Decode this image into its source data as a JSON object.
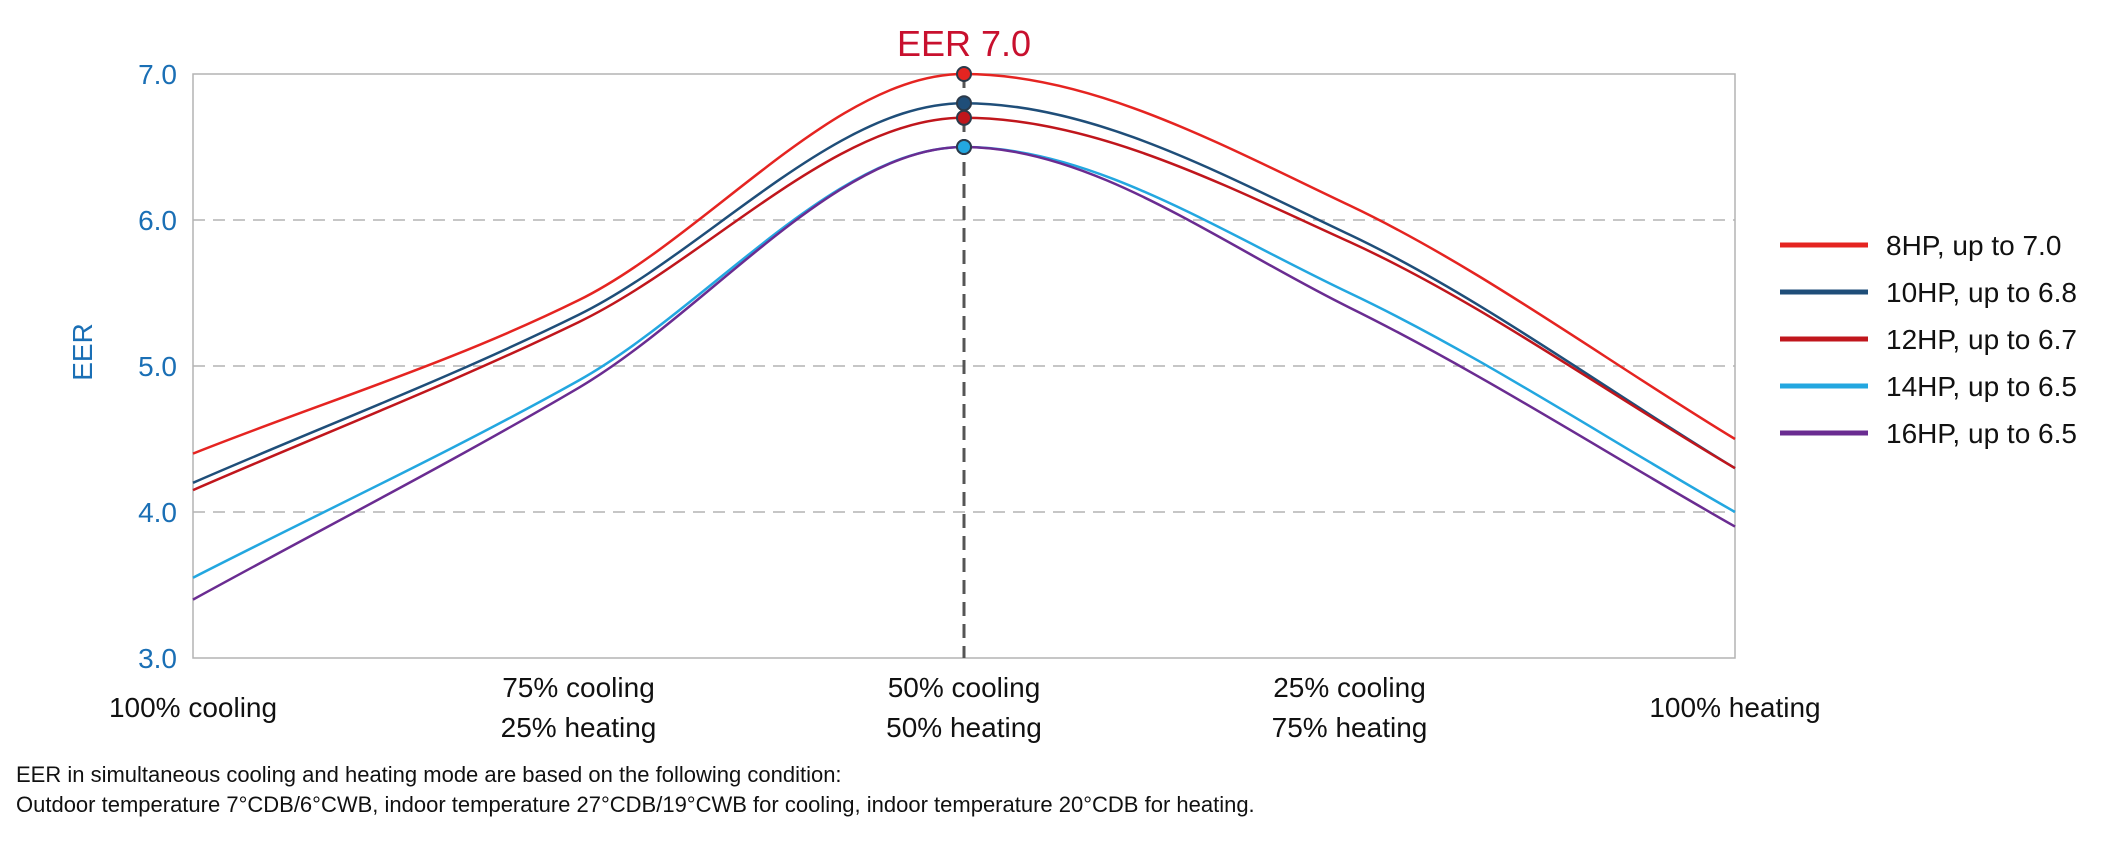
{
  "chart_data": {
    "type": "line",
    "title": "",
    "annotation": "EER 7.0",
    "xlabel": "",
    "ylabel": "EER",
    "ylim": [
      3.0,
      7.0
    ],
    "yticks": [
      "3.0",
      "4.0",
      "5.0",
      "6.0",
      "7.0"
    ],
    "grid": "horizontal dashed",
    "legend_position": "right",
    "categories": [
      [
        "100% cooling"
      ],
      [
        "75% cooling",
        "25% heating"
      ],
      [
        "50% cooling",
        "50% heating"
      ],
      [
        "25% cooling",
        "75% heating"
      ],
      [
        "100% heating"
      ]
    ],
    "x": [
      0,
      25,
      50,
      75,
      100
    ],
    "series": [
      {
        "name": "8HP, up to 7.0",
        "color": "#e52421",
        "values": [
          4.4,
          5.45,
          7.0,
          6.1,
          4.5
        ]
      },
      {
        "name": "10HP, up to 6.8",
        "color": "#1f4e79",
        "values": [
          4.2,
          5.35,
          6.8,
          5.9,
          4.3
        ]
      },
      {
        "name": "12HP, up to 6.7",
        "color": "#c0161c",
        "values": [
          4.15,
          5.3,
          6.7,
          5.85,
          4.3
        ]
      },
      {
        "name": "14HP, up to 6.5",
        "color": "#23a7e0",
        "values": [
          3.55,
          4.9,
          6.5,
          5.5,
          4.0
        ]
      },
      {
        "name": "16HP, up to 6.5",
        "color": "#6a2c91",
        "values": [
          3.4,
          4.85,
          6.5,
          5.4,
          3.9
        ]
      }
    ]
  },
  "colors": {
    "axis_text": "#1a6fb5",
    "annotation": "#c8102e",
    "grid": "#b3b3b3",
    "frame": "#b3b3b3",
    "marker_line": "#555555"
  },
  "notes": {
    "line1": "EER in simultaneous cooling and heating mode are based on the following condition:",
    "line2": "Outdoor temperature 7°CDB/6°CWB, indoor temperature 27°CDB/19°CWB for cooling, indoor temperature 20°CDB for heating."
  }
}
